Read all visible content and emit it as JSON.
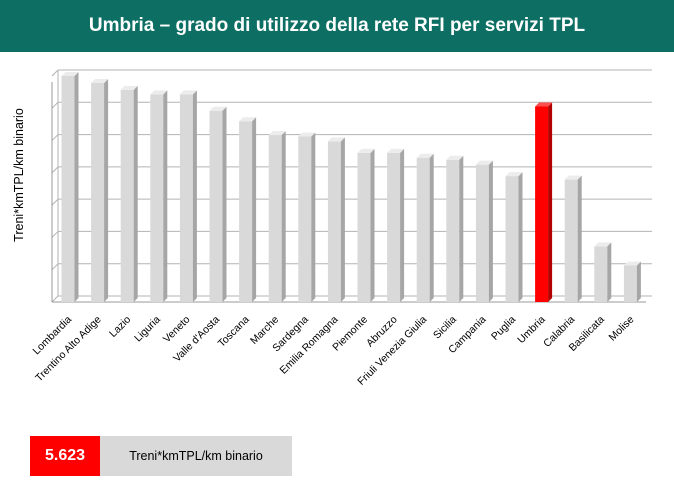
{
  "header": {
    "title": "Umbria – grado di utilizzo della rete RFI per servizi TPL"
  },
  "chart_data": {
    "type": "bar",
    "title": "Umbria – grado di utilizzo della rete RFI per servizi TPL",
    "xlabel": "",
    "ylabel": "Treni*kmTPL/km binario",
    "y_tick_labels_shown": false,
    "ylim": [
      0,
      6.5
    ],
    "grid": true,
    "highlight": "Umbria",
    "colors": {
      "bar": "#d9d9d9",
      "bar_top": "#ececec",
      "bar_side": "#a6a6a6",
      "highlight": "#ff0000",
      "highlight_side": "#b30000"
    },
    "categories": [
      "Lombardia",
      "Trentino Alto Adige",
      "Lazio",
      "Liguria",
      "Veneto",
      "Valle d'Aosta",
      "Toscana",
      "Marche",
      "Sardegna",
      "Emilia Romagna",
      "Piemonte",
      "Abruzzo",
      "Friuli Venezia Giulia",
      "Sicilia",
      "Campania",
      "Puglia",
      "Umbria",
      "Calabria",
      "Basilicata",
      "Molise"
    ],
    "values": [
      6.5,
      6.3,
      6.1,
      5.97,
      5.97,
      5.5,
      5.2,
      4.8,
      4.76,
      4.62,
      4.29,
      4.29,
      4.15,
      4.09,
      3.95,
      3.62,
      5.623,
      3.52,
      1.6,
      1.05
    ]
  },
  "kpi": {
    "value": "5.623",
    "label": "Treni*kmTPL/km binario"
  }
}
